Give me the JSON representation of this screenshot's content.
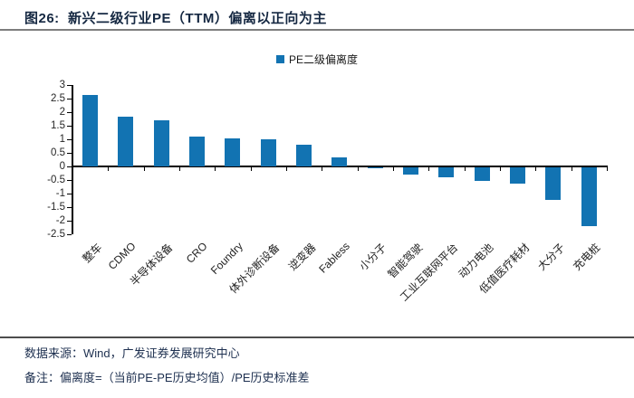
{
  "figure": {
    "title": "图26:  新兴二级行业PE（TTM）偏离以正向为主",
    "source_note": "数据来源：Wind，广发证券发展研究中心",
    "remark": "备注：偏离度=（当前PE-PE历史均值）/PE历史标准差"
  },
  "legend": {
    "label": "PE二级偏离度"
  },
  "colors": {
    "bar": "#1273b2",
    "title_text": "#152842",
    "footer_text": "#1e3050",
    "axis": "#000000",
    "rule_gray": "#7d7d7d",
    "rule_dark": "#4d4d4d"
  },
  "chart_data": {
    "type": "bar",
    "title": "新兴二级行业PE（TTM）偏离以正向为主",
    "legend": [
      "PE二级偏离度"
    ],
    "legend_position": "top-center",
    "grid": false,
    "categories": [
      "整车",
      "CDMO",
      "半导体设备",
      "CRO",
      "Foundry",
      "体外诊断设备",
      "逆变器",
      "Fabless",
      "小分子",
      "智能驾驶",
      "工业互联网平台",
      "动力电池",
      "低值医疗耗材",
      "大分子",
      "充电桩"
    ],
    "values": [
      2.65,
      1.85,
      1.7,
      1.1,
      1.05,
      1.0,
      0.8,
      0.35,
      -0.03,
      -0.25,
      -0.35,
      -0.5,
      -0.6,
      -1.2,
      -2.15
    ],
    "ylim": [
      -2.5,
      3
    ],
    "ytick_step": 0.5,
    "xlabel": "",
    "ylabel": "",
    "bar_color": "#1273b2"
  }
}
